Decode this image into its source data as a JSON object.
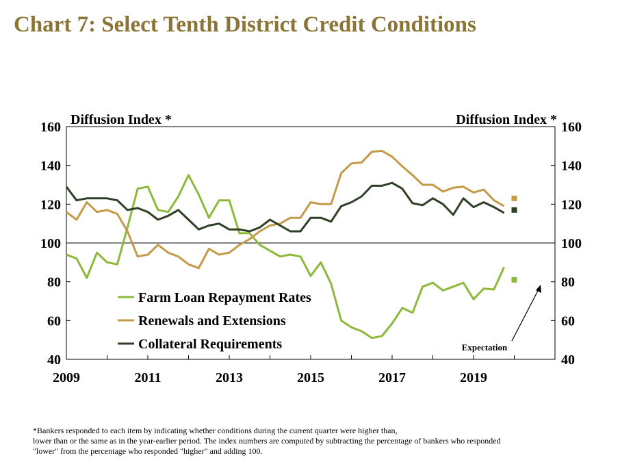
{
  "title": "Chart 7: Select Tenth District Credit Conditions",
  "footnote": [
    "*Bankers responded to each item by indicating whether conditions during the current quarter were higher than,",
    "lower than or the same as in the year-earlier period.  The index numbers are computed by subtracting the percentage of bankers who responded",
    "\"lower\" from the percentage who responded \"higher\" and adding 100."
  ],
  "chart_data": {
    "type": "line",
    "ylabel_left": "Diffusion Index *",
    "ylabel_right": "Diffusion Index *",
    "ylim": [
      40,
      160
    ],
    "yticks": [
      40,
      60,
      80,
      100,
      120,
      140,
      160
    ],
    "xlim": [
      2009,
      2021
    ],
    "xticks": [
      2009,
      2011,
      2013,
      2015,
      2017,
      2019
    ],
    "reference_line": 100,
    "grid": false,
    "legend_position": "lower-left",
    "annotation": "Expectation",
    "series": [
      {
        "name": "Farm Loan Repayment Rates",
        "color": "#8DB83A",
        "x": [
          2009.0,
          2009.25,
          2009.5,
          2009.75,
          2010.0,
          2010.25,
          2010.5,
          2010.75,
          2011.0,
          2011.25,
          2011.5,
          2011.75,
          2012.0,
          2012.25,
          2012.5,
          2012.75,
          2013.0,
          2013.25,
          2013.5,
          2013.75,
          2014.0,
          2014.25,
          2014.5,
          2014.75,
          2015.0,
          2015.25,
          2015.5,
          2015.75,
          2016.0,
          2016.25,
          2016.5,
          2016.75,
          2017.0,
          2017.25,
          2017.5,
          2017.75,
          2018.0,
          2018.25,
          2018.5,
          2018.75,
          2019.0,
          2019.25,
          2019.5,
          2019.75
        ],
        "values": [
          94,
          92,
          82,
          95,
          90,
          89,
          108,
          128,
          129,
          117,
          116,
          124,
          135,
          125,
          113,
          122,
          122,
          105,
          105,
          99,
          96,
          93,
          94,
          93,
          83,
          90,
          79,
          60,
          56.5,
          54.5,
          51,
          52,
          58.5,
          66.5,
          64,
          77.5,
          79.5,
          75.5,
          77.5,
          79.5,
          71,
          76.5,
          76,
          87.5
        ],
        "expectation": {
          "x": 2020.0,
          "value": 81
        }
      },
      {
        "name": "Renewals and Extensions",
        "color": "#C39A48",
        "x": [
          2009.0,
          2009.25,
          2009.5,
          2009.75,
          2010.0,
          2010.25,
          2010.5,
          2010.75,
          2011.0,
          2011.25,
          2011.5,
          2011.75,
          2012.0,
          2012.25,
          2012.5,
          2012.75,
          2013.0,
          2013.25,
          2013.5,
          2013.75,
          2014.0,
          2014.25,
          2014.5,
          2014.75,
          2015.0,
          2015.25,
          2015.5,
          2015.75,
          2016.0,
          2016.25,
          2016.5,
          2016.75,
          2017.0,
          2017.25,
          2017.5,
          2017.75,
          2018.0,
          2018.25,
          2018.5,
          2018.75,
          2019.0,
          2019.25,
          2019.5,
          2019.75
        ],
        "values": [
          116,
          112,
          121,
          116,
          117,
          115,
          106,
          93,
          94,
          99,
          95,
          93,
          89,
          87,
          97,
          94,
          95,
          99,
          102,
          106,
          109,
          110,
          113,
          113,
          121,
          120,
          120,
          136,
          141,
          141.5,
          147,
          147.5,
          144.5,
          139.5,
          135,
          130,
          130,
          126.5,
          128.5,
          129,
          126,
          127.5,
          122,
          119
        ],
        "expectation": {
          "x": 2020.0,
          "value": 123
        }
      },
      {
        "name": "Collateral Requirements",
        "color": "#2F3F26",
        "x": [
          2009.0,
          2009.25,
          2009.5,
          2009.75,
          2010.0,
          2010.25,
          2010.5,
          2010.75,
          2011.0,
          2011.25,
          2011.5,
          2011.75,
          2012.0,
          2012.25,
          2012.5,
          2012.75,
          2013.0,
          2013.25,
          2013.5,
          2013.75,
          2014.0,
          2014.25,
          2014.5,
          2014.75,
          2015.0,
          2015.25,
          2015.5,
          2015.75,
          2016.0,
          2016.25,
          2016.5,
          2016.75,
          2017.0,
          2017.25,
          2017.5,
          2017.75,
          2018.0,
          2018.25,
          2018.5,
          2018.75,
          2019.0,
          2019.25,
          2019.5,
          2019.75
        ],
        "values": [
          129,
          122,
          123,
          123,
          123,
          122,
          117,
          118,
          116,
          112,
          114,
          117,
          112,
          107,
          109,
          110,
          107,
          107,
          106,
          108,
          112,
          109,
          106,
          106,
          113,
          113,
          111,
          119,
          121,
          124,
          129.5,
          129.5,
          131,
          128,
          120.5,
          119.5,
          123,
          120,
          114.5,
          123,
          118.5,
          121,
          118.5,
          115.5
        ],
        "expectation": {
          "x": 2020.0,
          "value": 117
        }
      }
    ]
  }
}
